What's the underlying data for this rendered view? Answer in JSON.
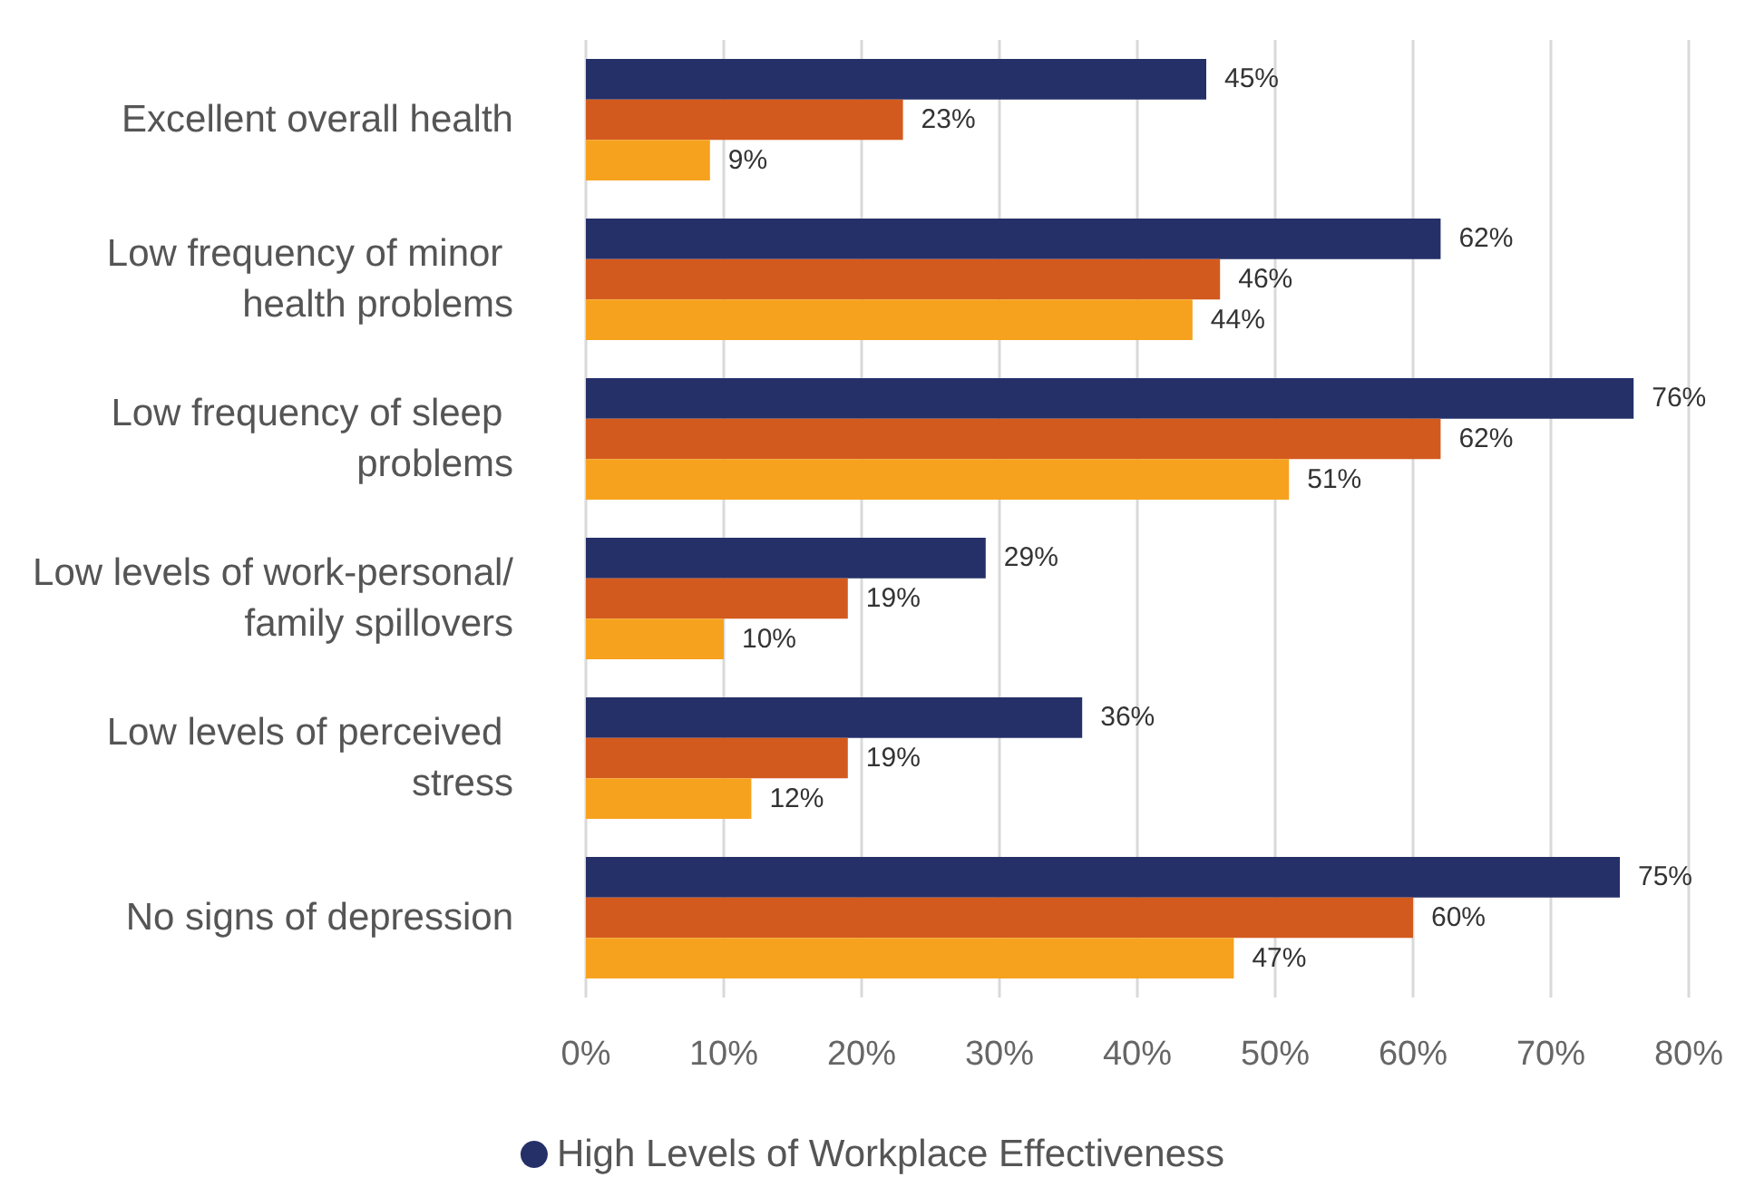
{
  "chart_data": {
    "type": "bar",
    "orientation": "horizontal",
    "categories": [
      "Excellent overall health",
      "Low frequency of minor health problems",
      "Low frequency of sleep problems",
      "Low levels of work-personal/family spillovers",
      "Low levels of perceived stress",
      "No signs of depression"
    ],
    "series": [
      {
        "name": "High Levels of Workplace Effectiveness",
        "color": "#253069",
        "values": [
          45,
          62,
          76,
          29,
          36,
          75
        ],
        "value_labels": [
          "45%",
          "62%",
          "76%",
          "29%",
          "36%",
          "75%"
        ]
      },
      {
        "color": "#d35a1e",
        "values": [
          23,
          46,
          62,
          19,
          19,
          60
        ],
        "value_labels": [
          "23%",
          "46%",
          "62%",
          "19%",
          "19%",
          "60%"
        ]
      },
      {
        "color": "#f6a21e",
        "values": [
          9,
          44,
          51,
          10,
          12,
          47
        ],
        "value_labels": [
          "9%",
          "44%",
          "51%",
          "10%",
          "12%",
          "47%"
        ]
      }
    ],
    "xlim": [
      0,
      80
    ],
    "xticks": [
      {
        "value": 0,
        "label": "0%"
      },
      {
        "value": 10,
        "label": "10%"
      },
      {
        "value": 20,
        "label": "20%"
      },
      {
        "value": 30,
        "label": "30%"
      },
      {
        "value": 40,
        "label": "40%"
      },
      {
        "value": 50,
        "label": "50%"
      },
      {
        "value": 60,
        "label": "60%"
      },
      {
        "value": 70,
        "label": "70%"
      },
      {
        "value": 80,
        "label": "80%"
      }
    ],
    "grid": "x",
    "legend": "bottom"
  }
}
